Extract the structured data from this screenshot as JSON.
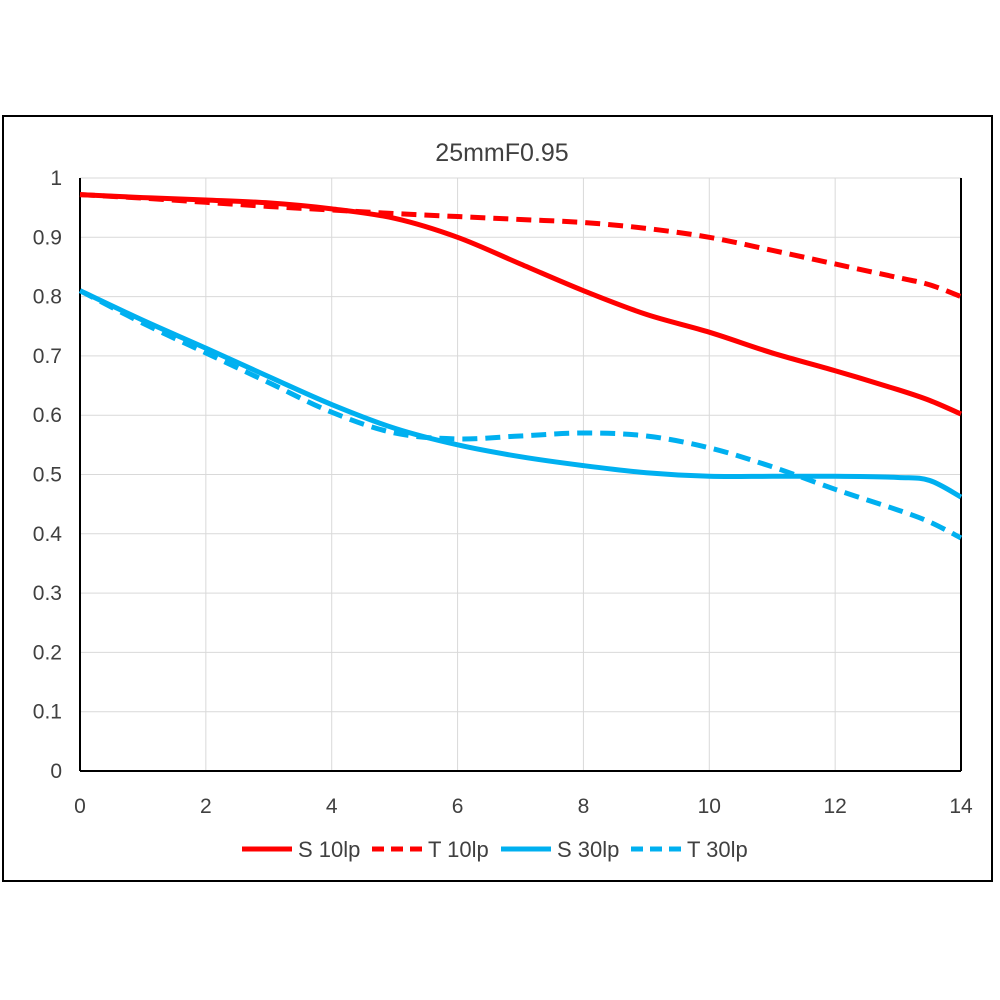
{
  "chart_data": {
    "type": "line",
    "title": "25mmF0.95",
    "xlabel": "",
    "ylabel": "",
    "xlim": [
      0,
      14
    ],
    "ylim": [
      0,
      1
    ],
    "x_ticks": [
      "0",
      "2",
      "4",
      "6",
      "8",
      "10",
      "12",
      "14"
    ],
    "y_ticks": [
      "0",
      "0.1",
      "0.2",
      "0.3",
      "0.4",
      "0.5",
      "0.6",
      "0.7",
      "0.8",
      "0.9",
      "1"
    ],
    "grid": true,
    "legend_position": "bottom",
    "x": [
      0,
      1,
      2,
      3,
      4,
      5,
      6,
      7,
      8,
      9,
      10,
      11,
      12,
      13,
      13.5,
      14
    ],
    "series": [
      {
        "name": "S 10lp",
        "color": "#ff0000",
        "dash": "solid",
        "values": [
          0.972,
          0.967,
          0.963,
          0.958,
          0.948,
          0.932,
          0.9,
          0.855,
          0.81,
          0.77,
          0.74,
          0.705,
          0.675,
          0.643,
          0.625,
          0.602
        ]
      },
      {
        "name": "T 10lp",
        "color": "#ff0000",
        "dash": "dashed",
        "values": [
          0.972,
          0.966,
          0.959,
          0.952,
          0.946,
          0.94,
          0.935,
          0.93,
          0.925,
          0.915,
          0.9,
          0.878,
          0.855,
          0.832,
          0.82,
          0.8
        ]
      },
      {
        "name": "S 30lp",
        "color": "#00b0f0",
        "dash": "solid",
        "values": [
          0.81,
          0.76,
          0.713,
          0.665,
          0.618,
          0.578,
          0.55,
          0.53,
          0.515,
          0.503,
          0.497,
          0.497,
          0.497,
          0.495,
          0.49,
          0.462
        ]
      },
      {
        "name": "T 30lp",
        "color": "#00b0f0",
        "dash": "dashed",
        "values": [
          0.81,
          0.755,
          0.705,
          0.655,
          0.605,
          0.57,
          0.56,
          0.565,
          0.57,
          0.565,
          0.545,
          0.513,
          0.475,
          0.44,
          0.42,
          0.393
        ]
      }
    ]
  }
}
